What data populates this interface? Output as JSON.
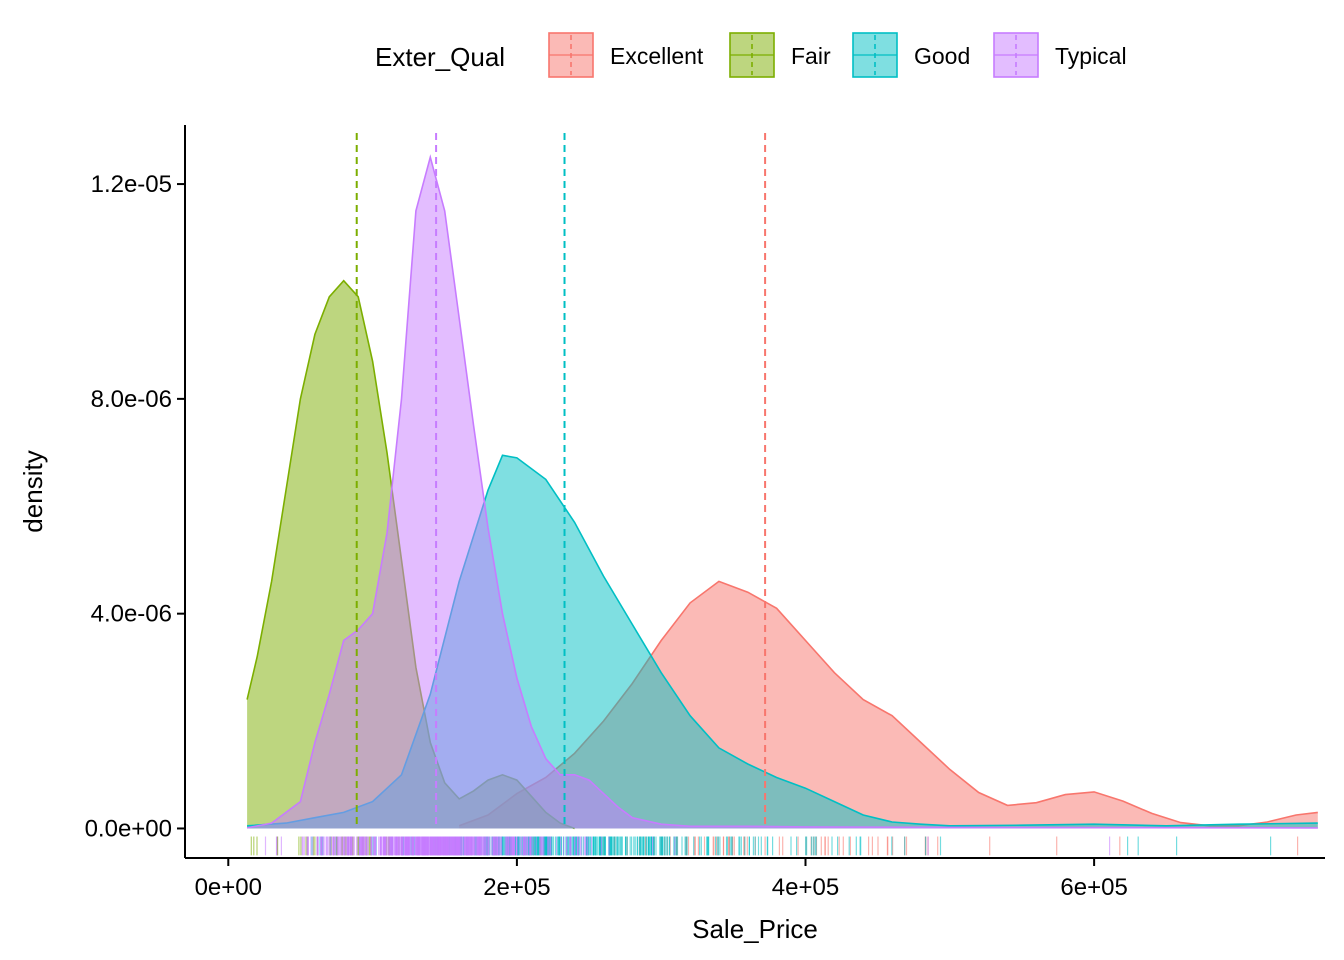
{
  "chart_data": {
    "type": "area",
    "subtype": "density",
    "xlabel": "Sale_Price",
    "ylabel": "density",
    "xlim": [
      -30000,
      760000
    ],
    "ylim": [
      -5.5e-07,
      1.31e-05
    ],
    "xticks": [
      0,
      200000,
      400000,
      600000
    ],
    "xtick_labels": [
      "0e+00",
      "2e+05",
      "4e+05",
      "6e+05"
    ],
    "yticks": [
      0,
      4e-06,
      8e-06,
      1.2e-05
    ],
    "ytick_labels": [
      "0.0e+00",
      "4.0e-06",
      "8.0e-06",
      "1.2e-05"
    ],
    "grid": false,
    "legend": {
      "title": "Exter_Qual",
      "position": "top",
      "entries": [
        "Excellent",
        "Fair",
        "Good",
        "Typical"
      ]
    },
    "fill_opacity": 0.5,
    "series": [
      {
        "name": "Excellent",
        "color": "#F8766D",
        "mean": 372000,
        "x": [
          160000,
          180000,
          200000,
          220000,
          240000,
          260000,
          280000,
          300000,
          320000,
          340000,
          360000,
          380000,
          400000,
          420000,
          440000,
          460000,
          480000,
          500000,
          520000,
          540000,
          560000,
          580000,
          600000,
          620000,
          640000,
          660000,
          680000,
          700000,
          720000,
          740000,
          755000
        ],
        "y": [
          5e-08,
          2.5e-07,
          6.5e-07,
          9.5e-07,
          1.4e-06,
          2e-06,
          2.7e-06,
          3.5e-06,
          4.2e-06,
          4.6e-06,
          4.4e-06,
          4.1e-06,
          3.5e-06,
          2.9e-06,
          2.4e-06,
          2.1e-06,
          1.6e-06,
          1.1e-06,
          6.7e-07,
          4.3e-07,
          4.8e-07,
          6.3e-07,
          6.8e-07,
          5.1e-07,
          2.8e-07,
          1.1e-07,
          5e-08,
          5e-08,
          1.2e-07,
          2.5e-07,
          3e-07
        ]
      },
      {
        "name": "Fair",
        "color": "#7CAE00",
        "mean": 89000,
        "x": [
          13000,
          20000,
          30000,
          40000,
          50000,
          60000,
          70000,
          80000,
          90000,
          100000,
          110000,
          120000,
          130000,
          140000,
          150000,
          160000,
          170000,
          180000,
          190000,
          200000,
          210000,
          220000,
          230000,
          240000
        ],
        "y": [
          2.4e-06,
          3.2e-06,
          4.6e-06,
          6.3e-06,
          8e-06,
          9.2e-06,
          9.9e-06,
          1.02e-05,
          9.9e-06,
          8.7e-06,
          7e-06,
          5e-06,
          3e-06,
          1.6e-06,
          8.5e-07,
          5.5e-07,
          7e-07,
          9e-07,
          1e-06,
          9e-07,
          6e-07,
          3e-07,
          1e-07,
          0.0
        ]
      },
      {
        "name": "Good",
        "color": "#00BFC4",
        "mean": 233000,
        "x": [
          13000,
          40000,
          60000,
          80000,
          100000,
          120000,
          140000,
          160000,
          180000,
          190000,
          200000,
          220000,
          240000,
          260000,
          280000,
          300000,
          320000,
          340000,
          360000,
          380000,
          400000,
          420000,
          440000,
          460000,
          480000,
          500000,
          550000,
          600000,
          650000,
          700000,
          755000
        ],
        "y": [
          5e-08,
          1e-07,
          2e-07,
          3e-07,
          5e-07,
          1e-06,
          2.5e-06,
          4.6e-06,
          6.3e-06,
          6.95e-06,
          6.9e-06,
          6.5e-06,
          5.7e-06,
          4.7e-06,
          3.8e-06,
          2.9e-06,
          2.1e-06,
          1.5e-06,
          1.2e-06,
          9.5e-07,
          7.5e-07,
          5e-07,
          2.5e-07,
          1.2e-07,
          8e-08,
          5e-08,
          6e-08,
          8e-08,
          5e-08,
          8e-08,
          1e-07
        ]
      },
      {
        "name": "Typical",
        "color": "#C77CFF",
        "mean": 144000,
        "x": [
          13000,
          30000,
          50000,
          60000,
          70000,
          80000,
          90000,
          100000,
          110000,
          120000,
          130000,
          140000,
          150000,
          160000,
          170000,
          180000,
          190000,
          200000,
          210000,
          220000,
          230000,
          240000,
          250000,
          260000,
          270000,
          280000,
          300000,
          320000,
          360000,
          400000,
          500000,
          755000
        ],
        "y": [
          1e-08,
          1e-07,
          5e-07,
          1.6e-06,
          2.5e-06,
          3.5e-06,
          3.7e-06,
          4e-06,
          5.5e-06,
          8e-06,
          1.15e-05,
          1.25e-05,
          1.15e-05,
          9.5e-06,
          7.5e-06,
          5.6e-06,
          4e-06,
          2.8e-06,
          1.9e-06,
          1.3e-06,
          1e-06,
          1e-06,
          9e-07,
          6.5e-07,
          4e-07,
          2e-07,
          8e-08,
          4e-08,
          4e-08,
          3e-08,
          2e-08,
          1e-08
        ]
      }
    ]
  }
}
